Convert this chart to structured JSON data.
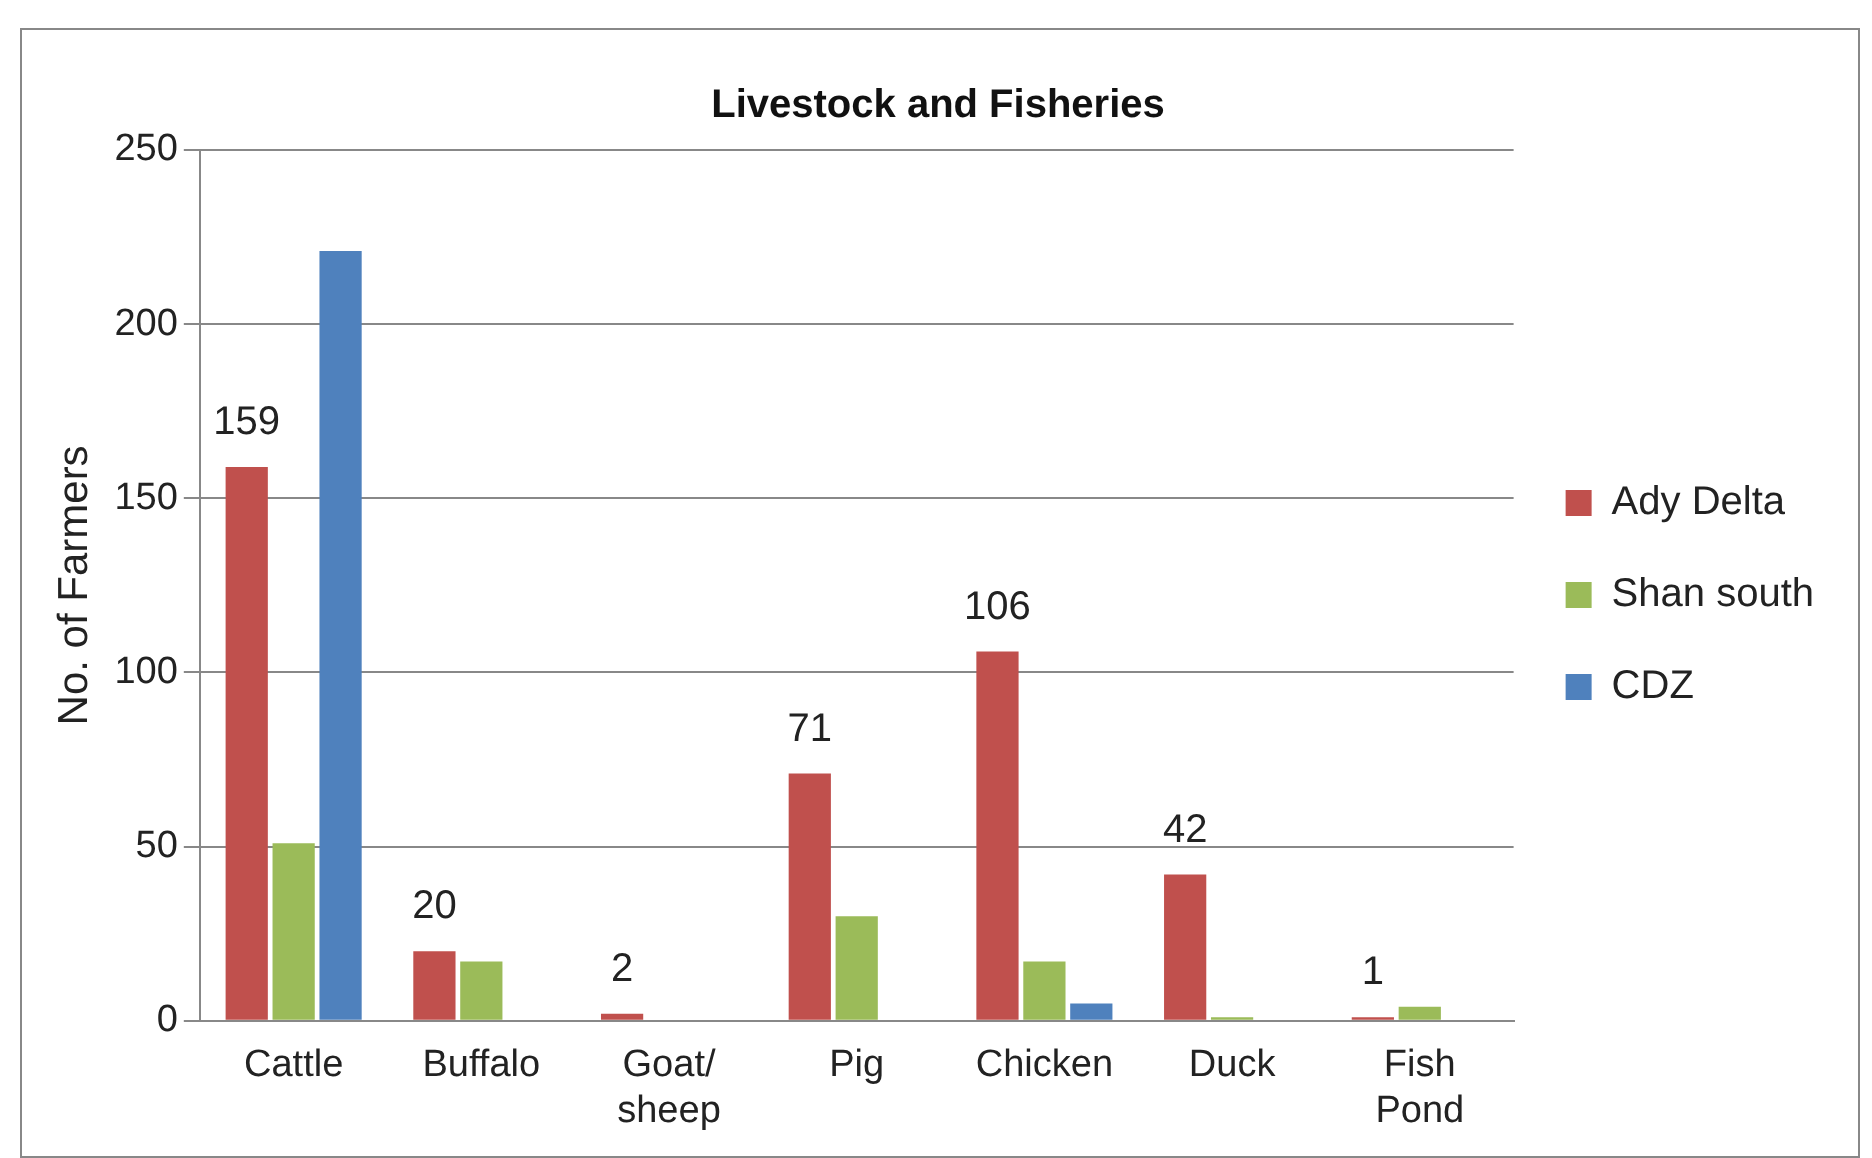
{
  "chart_data": {
    "type": "bar",
    "title": "Livestock and Fisheries",
    "ylabel": "No. of Farmers",
    "categories": [
      "Cattle",
      "Buffalo",
      "Goat/ sheep",
      "Pig",
      "Chicken",
      "Duck",
      "Fish Pond"
    ],
    "series": [
      {
        "name": "Ady Delta",
        "color": "#c0504d",
        "values": [
          159,
          20,
          2,
          71,
          106,
          42,
          1
        ],
        "value_labels": [
          "159",
          "20",
          "2",
          "71",
          "106",
          "42",
          "1"
        ]
      },
      {
        "name": "Shan south",
        "color": "#9bbb59",
        "values": [
          51,
          17,
          0,
          30,
          17,
          1,
          4
        ]
      },
      {
        "name": "CDZ",
        "color": "#4f81bd",
        "values": [
          221,
          0,
          0,
          0,
          5,
          0,
          0
        ]
      }
    ],
    "ylim": [
      0,
      250
    ],
    "yticks": [
      0,
      50,
      100,
      150,
      200,
      250
    ],
    "grid": "y",
    "legend": "right"
  }
}
